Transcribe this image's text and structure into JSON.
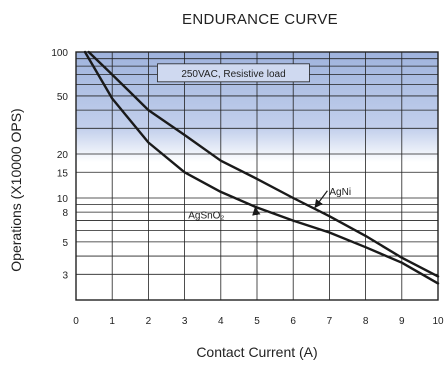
{
  "chart_data": {
    "type": "line",
    "title": "ENDURANCE CURVE",
    "xlabel": "Contact Current (A)",
    "ylabel": "Operations (X10000 OPS)",
    "xlim": [
      0,
      10
    ],
    "ylim": [
      2,
      100
    ],
    "y_scale": "log",
    "x_ticks": [
      0,
      1,
      2,
      3,
      4,
      5,
      6,
      7,
      8,
      9,
      10
    ],
    "y_ticks": [
      3,
      5,
      8,
      10,
      15,
      20,
      50,
      100
    ],
    "y_gridlines": [
      3,
      4,
      5,
      6,
      7,
      8,
      9,
      10,
      15,
      20,
      30,
      40,
      50,
      60,
      70,
      80,
      90,
      100
    ],
    "grid": true,
    "shaded_band": {
      "y_from": 20,
      "y_to": 100,
      "color": "#9fb3dd"
    },
    "condition_label": "250VAC, Resistive load",
    "series": [
      {
        "name": "AgNi",
        "x": [
          0.35,
          1,
          2,
          3,
          4,
          5,
          6,
          7,
          8,
          9,
          10
        ],
        "y": [
          100,
          70,
          40,
          27,
          18,
          13.5,
          10,
          7.5,
          5.5,
          3.9,
          2.9
        ]
      },
      {
        "name": "AgSnO₂",
        "x": [
          0.25,
          1,
          2,
          3,
          4,
          5,
          6,
          7,
          8,
          9,
          10
        ],
        "y": [
          100,
          48,
          24,
          15,
          11,
          8.6,
          7.0,
          5.8,
          4.6,
          3.6,
          2.6
        ]
      }
    ],
    "annotations": [
      {
        "text": "AgNi",
        "series": "AgNi",
        "arrow_to": [
          6.6,
          8.6
        ],
        "text_at": [
          7.0,
          11.2
        ]
      },
      {
        "text": "AgSnO₂",
        "series": "AgSnO₂",
        "arrow_to": [
          4.95,
          8.6
        ],
        "text_at": [
          3.1,
          7.7
        ]
      }
    ]
  }
}
